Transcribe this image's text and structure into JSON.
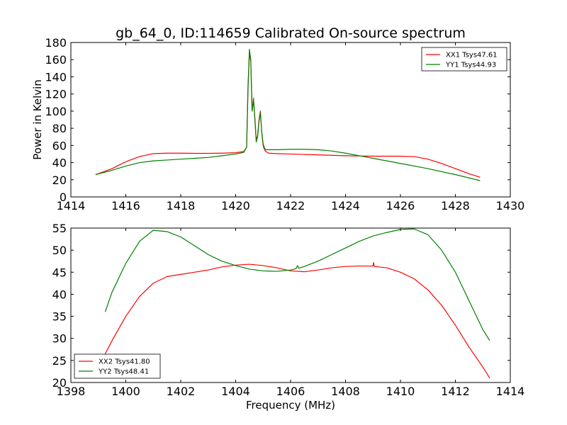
{
  "chart_data": [
    {
      "type": "line",
      "title": "gb_64_0, ID:114659 Calibrated On-source spectrum",
      "xlabel": "",
      "ylabel": "Power in Kelvin",
      "xlim": [
        1414,
        1430
      ],
      "ylim": [
        0,
        180
      ],
      "xticks": [
        "1414",
        "1416",
        "1418",
        "1420",
        "1422",
        "1424",
        "1426",
        "1428",
        "1430"
      ],
      "yticks": [
        "0",
        "20",
        "40",
        "60",
        "80",
        "100",
        "120",
        "140",
        "160",
        "180"
      ],
      "legend_position": "upper right",
      "series": [
        {
          "name": "XX1 Tsys47.61",
          "color": "#ff0000",
          "x": [
            1414.9,
            1415.5,
            1416,
            1416.5,
            1417,
            1417.5,
            1418,
            1418.5,
            1419,
            1419.5,
            1420,
            1420.3,
            1420.4,
            1420.45,
            1420.5,
            1420.55,
            1420.6,
            1420.65,
            1420.7,
            1420.75,
            1420.8,
            1420.85,
            1420.9,
            1420.95,
            1421,
            1421.05,
            1421.1,
            1421.2,
            1421.5,
            1422,
            1423,
            1424,
            1425,
            1426,
            1426.5,
            1427,
            1427.5,
            1428,
            1428.5,
            1428.9
          ],
          "y": [
            26,
            33,
            41,
            47,
            50.5,
            51,
            51,
            50.8,
            50.8,
            51,
            51.5,
            53,
            58,
            130,
            167,
            158,
            100,
            115,
            90,
            65,
            72,
            90,
            100,
            75,
            60,
            55,
            53,
            51,
            50.5,
            50,
            49,
            48,
            47.5,
            47.5,
            47,
            44,
            39,
            33,
            27,
            23
          ]
        },
        {
          "name": "YY1 Tsys44.93",
          "color": "#008000",
          "x": [
            1414.9,
            1415.5,
            1416,
            1416.5,
            1417,
            1417.5,
            1418,
            1418.5,
            1419,
            1419.5,
            1420,
            1420.3,
            1420.4,
            1420.45,
            1420.5,
            1420.55,
            1420.6,
            1420.65,
            1420.7,
            1420.75,
            1420.8,
            1420.85,
            1420.9,
            1420.95,
            1421,
            1421.05,
            1421.1,
            1421.2,
            1421.5,
            1422,
            1422.5,
            1423,
            1423.5,
            1424,
            1425,
            1426,
            1427,
            1428,
            1428.9
          ],
          "y": [
            26,
            31,
            36,
            40,
            42,
            43,
            44,
            45,
            46,
            48,
            50,
            52,
            58,
            125,
            172,
            160,
            100,
            113,
            92,
            64,
            70,
            88,
            98,
            76,
            62,
            57,
            55,
            55,
            55,
            55.5,
            55.5,
            55,
            53.5,
            51,
            45,
            39,
            33,
            26,
            19
          ]
        }
      ]
    },
    {
      "type": "line",
      "title": "",
      "xlabel": "Frequency (MHz)",
      "ylabel": "",
      "xlim": [
        1398,
        1414
      ],
      "ylim": [
        20,
        55
      ],
      "xticks": [
        "1398",
        "1400",
        "1402",
        "1404",
        "1406",
        "1408",
        "1410",
        "1412",
        "1414"
      ],
      "yticks": [
        "20",
        "25",
        "30",
        "35",
        "40",
        "45",
        "50",
        "55"
      ],
      "legend_position": "lower left",
      "series": [
        {
          "name": "XX2 Tsys41.80",
          "color": "#ff0000",
          "x": [
            1399.25,
            1399.5,
            1400,
            1400.5,
            1401,
            1401.5,
            1402,
            1402.5,
            1403,
            1403.5,
            1404,
            1404.5,
            1405,
            1405.5,
            1406,
            1406.5,
            1407,
            1407.5,
            1408,
            1408.5,
            1409,
            1409.02,
            1409.05,
            1409.5,
            1410,
            1410.5,
            1411,
            1411.5,
            1412,
            1412.5,
            1413,
            1413.25
          ],
          "y": [
            26.5,
            29.5,
            35,
            39.5,
            42.5,
            44,
            44.5,
            45,
            45.5,
            46.2,
            46.6,
            46.8,
            46.5,
            46,
            45.3,
            45.1,
            45.5,
            46,
            46.3,
            46.4,
            46.4,
            47.2,
            46.3,
            46,
            45,
            43.5,
            41,
            37.5,
            33,
            28,
            23.5,
            21
          ]
        },
        {
          "name": "YY2 Tsys48.41",
          "color": "#008000",
          "x": [
            1399.25,
            1399.5,
            1400,
            1400.5,
            1401,
            1401.5,
            1402,
            1402.5,
            1403,
            1403.5,
            1404,
            1404.5,
            1405,
            1405.5,
            1406,
            1406.2,
            1406.25,
            1406.3,
            1406.5,
            1407,
            1407.5,
            1408,
            1408.5,
            1409,
            1409.5,
            1410,
            1410.5,
            1411,
            1411.5,
            1412,
            1412.5,
            1413,
            1413.25
          ],
          "y": [
            36,
            40.5,
            47,
            52,
            54.5,
            54.2,
            53,
            51,
            49,
            47.5,
            46.5,
            45.7,
            45.3,
            45.2,
            45.5,
            45.8,
            46.5,
            45.9,
            46.3,
            47.5,
            49,
            50.5,
            52,
            53.2,
            54,
            54.7,
            54.8,
            53.5,
            50,
            45,
            38.5,
            32,
            29.5
          ]
        }
      ]
    }
  ]
}
